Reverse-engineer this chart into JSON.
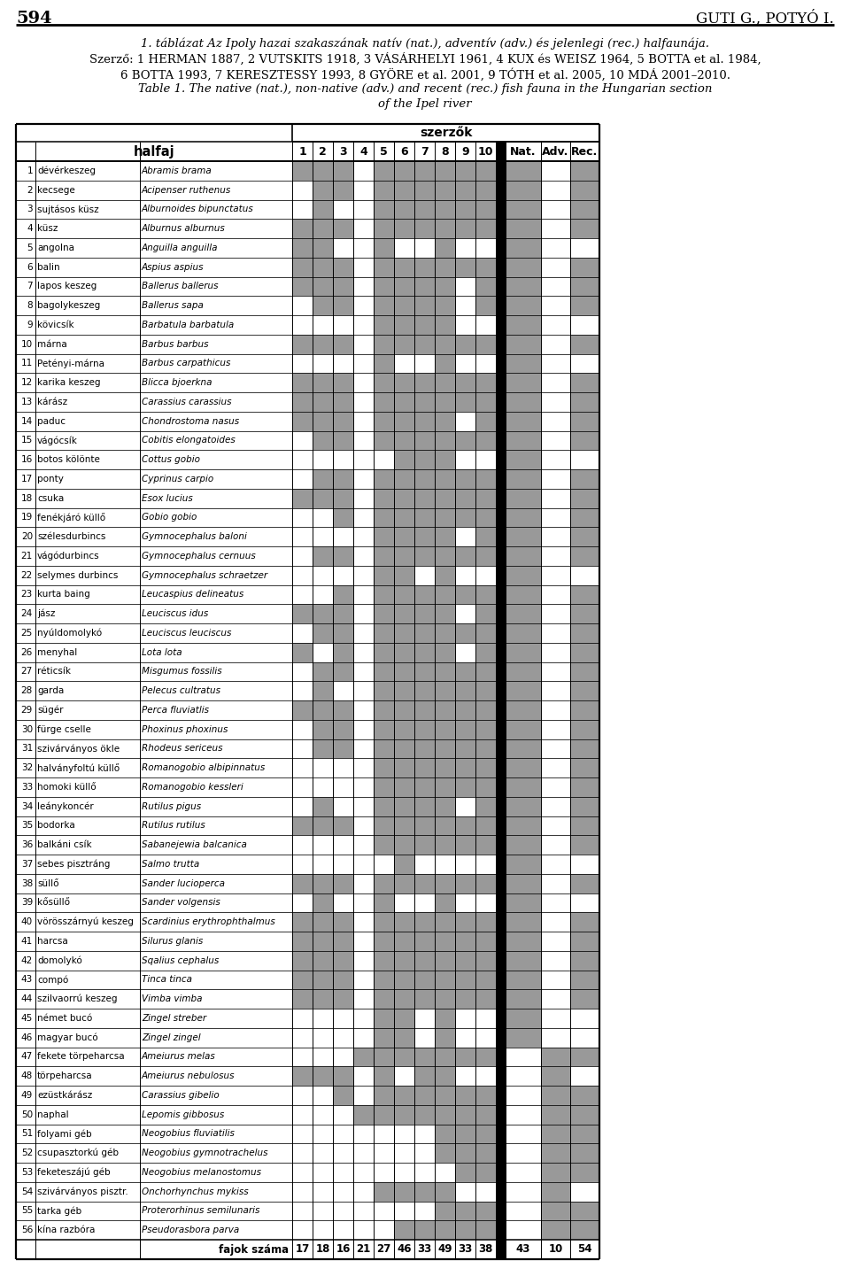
{
  "page_num": "594",
  "page_author": "GUTI G., POTYÓ I.",
  "rows": [
    {
      "num": 1,
      "hun": "dévérkeszeg",
      "lat": "Abramis brama",
      "cols": [
        1,
        1,
        1,
        0,
        1,
        1,
        1,
        1,
        1,
        1
      ],
      "nat": 1,
      "adv": 0,
      "rec": 1
    },
    {
      "num": 2,
      "hun": "kecsege",
      "lat": "Acipenser ruthenus",
      "cols": [
        0,
        1,
        1,
        0,
        1,
        1,
        1,
        1,
        1,
        1
      ],
      "nat": 1,
      "adv": 0,
      "rec": 1
    },
    {
      "num": 3,
      "hun": "sujtásos küsz",
      "lat": "Alburnoides bipunctatus",
      "cols": [
        0,
        1,
        0,
        0,
        1,
        1,
        1,
        1,
        1,
        1
      ],
      "nat": 1,
      "adv": 0,
      "rec": 1
    },
    {
      "num": 4,
      "hun": "küsz",
      "lat": "Alburnus alburnus",
      "cols": [
        1,
        1,
        1,
        0,
        1,
        1,
        1,
        1,
        1,
        1
      ],
      "nat": 1,
      "adv": 0,
      "rec": 1
    },
    {
      "num": 5,
      "hun": "angolna",
      "lat": "Anguilla anguilla",
      "cols": [
        1,
        1,
        0,
        0,
        1,
        0,
        0,
        1,
        0,
        0
      ],
      "nat": 1,
      "adv": 0,
      "rec": 0
    },
    {
      "num": 6,
      "hun": "balin",
      "lat": "Aspius aspius",
      "cols": [
        1,
        1,
        1,
        0,
        1,
        1,
        1,
        1,
        1,
        1
      ],
      "nat": 1,
      "adv": 0,
      "rec": 1
    },
    {
      "num": 7,
      "hun": "lapos keszeg",
      "lat": "Ballerus ballerus",
      "cols": [
        1,
        1,
        1,
        0,
        1,
        1,
        1,
        1,
        0,
        1
      ],
      "nat": 1,
      "adv": 0,
      "rec": 1
    },
    {
      "num": 8,
      "hun": "bagolykeszeg",
      "lat": "Ballerus sapa",
      "cols": [
        0,
        1,
        1,
        0,
        1,
        1,
        1,
        1,
        0,
        1
      ],
      "nat": 1,
      "adv": 0,
      "rec": 1
    },
    {
      "num": 9,
      "hun": "kövicsík",
      "lat": "Barbatula barbatula",
      "cols": [
        0,
        0,
        0,
        0,
        1,
        1,
        1,
        1,
        0,
        0
      ],
      "nat": 1,
      "adv": 0,
      "rec": 0
    },
    {
      "num": 10,
      "hun": "márna",
      "lat": "Barbus barbus",
      "cols": [
        1,
        1,
        1,
        0,
        1,
        1,
        1,
        1,
        1,
        1
      ],
      "nat": 1,
      "adv": 0,
      "rec": 1
    },
    {
      "num": 11,
      "hun": "Petényi-márna",
      "lat": "Barbus carpathicus",
      "cols": [
        0,
        0,
        0,
        0,
        1,
        0,
        0,
        1,
        0,
        0
      ],
      "nat": 1,
      "adv": 0,
      "rec": 0
    },
    {
      "num": 12,
      "hun": "karika keszeg",
      "lat": "Blicca bjoerkna",
      "cols": [
        1,
        1,
        1,
        0,
        1,
        1,
        1,
        1,
        1,
        1
      ],
      "nat": 1,
      "adv": 0,
      "rec": 1
    },
    {
      "num": 13,
      "hun": "kárász",
      "lat": "Carassius carassius",
      "cols": [
        1,
        1,
        1,
        0,
        1,
        1,
        1,
        1,
        1,
        1
      ],
      "nat": 1,
      "adv": 0,
      "rec": 1
    },
    {
      "num": 14,
      "hun": "paduc",
      "lat": "Chondrostoma nasus",
      "cols": [
        1,
        1,
        1,
        0,
        1,
        1,
        1,
        1,
        0,
        1
      ],
      "nat": 1,
      "adv": 0,
      "rec": 1
    },
    {
      "num": 15,
      "hun": "vágócsík",
      "lat": "Cobitis elongatoides",
      "cols": [
        0,
        1,
        1,
        0,
        1,
        1,
        1,
        1,
        1,
        1
      ],
      "nat": 1,
      "adv": 0,
      "rec": 1
    },
    {
      "num": 16,
      "hun": "botos kölönte",
      "lat": "Cottus gobio",
      "cols": [
        0,
        0,
        0,
        0,
        0,
        1,
        1,
        1,
        0,
        0
      ],
      "nat": 1,
      "adv": 0,
      "rec": 0
    },
    {
      "num": 17,
      "hun": "ponty",
      "lat": "Cyprinus carpio",
      "cols": [
        0,
        1,
        1,
        0,
        1,
        1,
        1,
        1,
        1,
        1
      ],
      "nat": 1,
      "adv": 0,
      "rec": 1
    },
    {
      "num": 18,
      "hun": "csuka",
      "lat": "Esox lucius",
      "cols": [
        1,
        1,
        1,
        0,
        1,
        1,
        1,
        1,
        1,
        1
      ],
      "nat": 1,
      "adv": 0,
      "rec": 1
    },
    {
      "num": 19,
      "hun": "fenékjáró küllő",
      "lat": "Gobio gobio",
      "cols": [
        0,
        0,
        1,
        0,
        1,
        1,
        1,
        1,
        1,
        1
      ],
      "nat": 1,
      "adv": 0,
      "rec": 1
    },
    {
      "num": 20,
      "hun": "szélesdurbincs",
      "lat": "Gymnocephalus baloni",
      "cols": [
        0,
        0,
        0,
        0,
        1,
        1,
        1,
        1,
        0,
        1
      ],
      "nat": 1,
      "adv": 0,
      "rec": 1
    },
    {
      "num": 21,
      "hun": "vágódurbincs",
      "lat": "Gymnocephalus cernuus",
      "cols": [
        0,
        1,
        1,
        0,
        1,
        1,
        1,
        1,
        1,
        1
      ],
      "nat": 1,
      "adv": 0,
      "rec": 1
    },
    {
      "num": 22,
      "hun": "selymes durbincs",
      "lat": "Gymnocephalus schraetzer",
      "cols": [
        0,
        0,
        0,
        0,
        1,
        1,
        0,
        1,
        0,
        0
      ],
      "nat": 1,
      "adv": 0,
      "rec": 0
    },
    {
      "num": 23,
      "hun": "kurta baing",
      "lat": "Leucaspius delineatus",
      "cols": [
        0,
        0,
        1,
        0,
        1,
        1,
        1,
        1,
        1,
        1
      ],
      "nat": 1,
      "adv": 0,
      "rec": 1
    },
    {
      "num": 24,
      "hun": "jász",
      "lat": "Leuciscus idus",
      "cols": [
        1,
        1,
        1,
        0,
        1,
        1,
        1,
        1,
        0,
        1
      ],
      "nat": 1,
      "adv": 0,
      "rec": 1
    },
    {
      "num": 25,
      "hun": "nyúldomolykó",
      "lat": "Leuciscus leuciscus",
      "cols": [
        0,
        1,
        1,
        0,
        1,
        1,
        1,
        1,
        1,
        1
      ],
      "nat": 1,
      "adv": 0,
      "rec": 1
    },
    {
      "num": 26,
      "hun": "menyhal",
      "lat": "Lota lota",
      "cols": [
        1,
        0,
        1,
        0,
        1,
        1,
        1,
        1,
        0,
        1
      ],
      "nat": 1,
      "adv": 0,
      "rec": 1
    },
    {
      "num": 27,
      "hun": "réticsík",
      "lat": "Misgumus fossilis",
      "cols": [
        0,
        1,
        1,
        0,
        1,
        1,
        1,
        1,
        1,
        1
      ],
      "nat": 1,
      "adv": 0,
      "rec": 1
    },
    {
      "num": 28,
      "hun": "garda",
      "lat": "Pelecus cultratus",
      "cols": [
        0,
        1,
        0,
        0,
        1,
        1,
        1,
        1,
        1,
        1
      ],
      "nat": 1,
      "adv": 0,
      "rec": 1
    },
    {
      "num": 29,
      "hun": "sügér",
      "lat": "Perca fluviatlis",
      "cols": [
        1,
        1,
        1,
        0,
        1,
        1,
        1,
        1,
        1,
        1
      ],
      "nat": 1,
      "adv": 0,
      "rec": 1
    },
    {
      "num": 30,
      "hun": "fürge cselle",
      "lat": "Phoxinus phoxinus",
      "cols": [
        0,
        1,
        1,
        0,
        1,
        1,
        1,
        1,
        1,
        1
      ],
      "nat": 1,
      "adv": 0,
      "rec": 1
    },
    {
      "num": 31,
      "hun": "szivárványos ökle",
      "lat": "Rhodeus sericeus",
      "cols": [
        0,
        1,
        1,
        0,
        1,
        1,
        1,
        1,
        1,
        1
      ],
      "nat": 1,
      "adv": 0,
      "rec": 1
    },
    {
      "num": 32,
      "hun": "halványfoltú küllő",
      "lat": "Romanogobio albipinnatus",
      "cols": [
        0,
        0,
        0,
        0,
        1,
        1,
        1,
        1,
        1,
        1
      ],
      "nat": 1,
      "adv": 0,
      "rec": 1
    },
    {
      "num": 33,
      "hun": "homoki küllő",
      "lat": "Romanogobio kessleri",
      "cols": [
        0,
        0,
        0,
        0,
        1,
        1,
        1,
        1,
        1,
        1
      ],
      "nat": 1,
      "adv": 0,
      "rec": 1
    },
    {
      "num": 34,
      "hun": "leánykoncér",
      "lat": "Rutilus pigus",
      "cols": [
        0,
        1,
        0,
        0,
        1,
        1,
        1,
        1,
        0,
        1
      ],
      "nat": 1,
      "adv": 0,
      "rec": 1
    },
    {
      "num": 35,
      "hun": "bodorka",
      "lat": "Rutilus rutilus",
      "cols": [
        1,
        1,
        1,
        0,
        1,
        1,
        1,
        1,
        1,
        1
      ],
      "nat": 1,
      "adv": 0,
      "rec": 1
    },
    {
      "num": 36,
      "hun": "balkáni csík",
      "lat": "Sabanejewia balcanica",
      "cols": [
        0,
        0,
        0,
        0,
        1,
        1,
        1,
        1,
        1,
        1
      ],
      "nat": 1,
      "adv": 0,
      "rec": 1
    },
    {
      "num": 37,
      "hun": "sebes pisztráng",
      "lat": "Salmo trutta",
      "cols": [
        0,
        0,
        0,
        0,
        0,
        1,
        0,
        0,
        0,
        0
      ],
      "nat": 1,
      "adv": 0,
      "rec": 0
    },
    {
      "num": 38,
      "hun": "süllő",
      "lat": "Sander lucioperca",
      "cols": [
        1,
        1,
        1,
        0,
        1,
        1,
        1,
        1,
        1,
        1
      ],
      "nat": 1,
      "adv": 0,
      "rec": 1
    },
    {
      "num": 39,
      "hun": "kősüllő",
      "lat": "Sander volgensis",
      "cols": [
        0,
        1,
        0,
        0,
        1,
        0,
        0,
        1,
        0,
        0
      ],
      "nat": 1,
      "adv": 0,
      "rec": 0
    },
    {
      "num": 40,
      "hun": "vörösszárnyú keszeg",
      "lat": "Scardinius erythrophthalmus",
      "cols": [
        1,
        1,
        1,
        0,
        1,
        1,
        1,
        1,
        1,
        1
      ],
      "nat": 1,
      "adv": 0,
      "rec": 1
    },
    {
      "num": 41,
      "hun": "harcsa",
      "lat": "Silurus glanis",
      "cols": [
        1,
        1,
        1,
        0,
        1,
        1,
        1,
        1,
        1,
        1
      ],
      "nat": 1,
      "adv": 0,
      "rec": 1
    },
    {
      "num": 42,
      "hun": "domolykó",
      "lat": "Sqalius cephalus",
      "cols": [
        1,
        1,
        1,
        0,
        1,
        1,
        1,
        1,
        1,
        1
      ],
      "nat": 1,
      "adv": 0,
      "rec": 1
    },
    {
      "num": 43,
      "hun": "compó",
      "lat": "Tinca tinca",
      "cols": [
        1,
        1,
        1,
        0,
        1,
        1,
        1,
        1,
        1,
        1
      ],
      "nat": 1,
      "adv": 0,
      "rec": 1
    },
    {
      "num": 44,
      "hun": "szilvaorrú keszeg",
      "lat": "Vimba vimba",
      "cols": [
        1,
        1,
        1,
        0,
        1,
        1,
        1,
        1,
        1,
        1
      ],
      "nat": 1,
      "adv": 0,
      "rec": 1
    },
    {
      "num": 45,
      "hun": "német bucó",
      "lat": "Zingel streber",
      "cols": [
        0,
        0,
        0,
        0,
        1,
        1,
        0,
        1,
        0,
        0
      ],
      "nat": 1,
      "adv": 0,
      "rec": 0
    },
    {
      "num": 46,
      "hun": "magyar bucó",
      "lat": "Zingel zingel",
      "cols": [
        0,
        0,
        0,
        0,
        1,
        1,
        0,
        1,
        0,
        0
      ],
      "nat": 1,
      "adv": 0,
      "rec": 0
    },
    {
      "num": 47,
      "hun": "fekete törpeharcsa",
      "lat": "Ameiurus melas",
      "cols": [
        0,
        0,
        0,
        1,
        1,
        1,
        1,
        1,
        1,
        1
      ],
      "nat": 0,
      "adv": 1,
      "rec": 1
    },
    {
      "num": 48,
      "hun": "törpeharcsa",
      "lat": "Ameiurus nebulosus",
      "cols": [
        1,
        1,
        1,
        0,
        1,
        0,
        1,
        1,
        0,
        0
      ],
      "nat": 0,
      "adv": 1,
      "rec": 0
    },
    {
      "num": 49,
      "hun": "ezüstkárász",
      "lat": "Carassius gibelio",
      "cols": [
        0,
        0,
        1,
        0,
        1,
        1,
        1,
        1,
        1,
        1
      ],
      "nat": 0,
      "adv": 1,
      "rec": 1
    },
    {
      "num": 50,
      "hun": "naphal",
      "lat": "Lepomis gibbosus",
      "cols": [
        0,
        0,
        0,
        1,
        1,
        1,
        1,
        1,
        1,
        1
      ],
      "nat": 0,
      "adv": 1,
      "rec": 1
    },
    {
      "num": 51,
      "hun": "folyami géb",
      "lat": "Neogobius fluviatilis",
      "cols": [
        0,
        0,
        0,
        0,
        0,
        0,
        0,
        1,
        1,
        1
      ],
      "nat": 0,
      "adv": 1,
      "rec": 1
    },
    {
      "num": 52,
      "hun": "csupasztorkú géb",
      "lat": "Neogobius gymnotrachelus",
      "cols": [
        0,
        0,
        0,
        0,
        0,
        0,
        0,
        1,
        1,
        1
      ],
      "nat": 0,
      "adv": 1,
      "rec": 1
    },
    {
      "num": 53,
      "hun": "feketeszájú géb",
      "lat": "Neogobius melanostomus",
      "cols": [
        0,
        0,
        0,
        0,
        0,
        0,
        0,
        0,
        1,
        1
      ],
      "nat": 0,
      "adv": 1,
      "rec": 1
    },
    {
      "num": 54,
      "hun": "szivárványos pisztr.",
      "lat": "Onchorhynchus mykiss",
      "cols": [
        0,
        0,
        0,
        0,
        1,
        1,
        1,
        1,
        0,
        0
      ],
      "nat": 0,
      "adv": 1,
      "rec": 0
    },
    {
      "num": 55,
      "hun": "tarka géb",
      "lat": "Proterorhinus semilunaris",
      "cols": [
        0,
        0,
        0,
        0,
        0,
        0,
        0,
        1,
        1,
        1
      ],
      "nat": 0,
      "adv": 1,
      "rec": 1
    },
    {
      "num": 56,
      "hun": "kína razbóra",
      "lat": "Pseudorasbora parva",
      "cols": [
        0,
        0,
        0,
        0,
        0,
        1,
        1,
        1,
        1,
        1
      ],
      "nat": 0,
      "adv": 1,
      "rec": 1
    }
  ],
  "footer_counts": [
    "17",
    "18",
    "16",
    "21",
    "27",
    "46",
    "33",
    "49",
    "33",
    "38",
    "43",
    "10",
    "54"
  ],
  "footer_label": "fajok száma",
  "gray": "#999999",
  "darkgray": "#555555",
  "white": "#ffffff",
  "black": "#000000"
}
